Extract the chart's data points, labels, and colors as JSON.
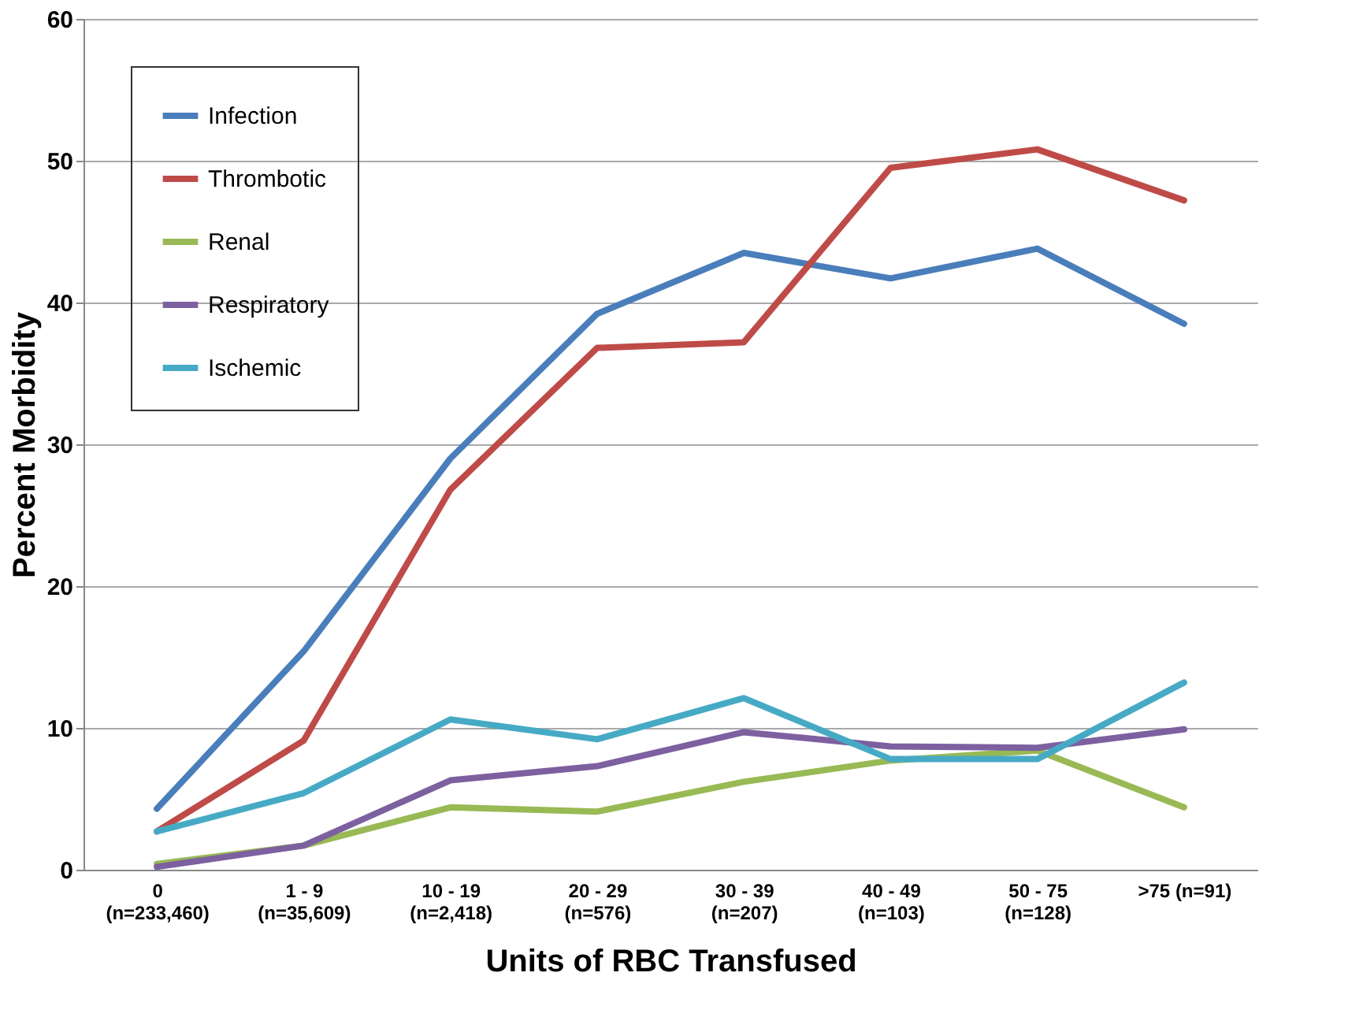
{
  "chart_data": {
    "type": "line",
    "xlabel": "Units of RBC Transfused",
    "ylabel": "Percent Morbidity",
    "categories": [
      "0\n(n=233,460)",
      "1 - 9\n(n=35,609)",
      "10 - 19\n(n=2,418)",
      "20 - 29\n(n=576)",
      "30 - 39\n(n=207)",
      "40 - 49\n(n=103)",
      "50 - 75\n(n=128)",
      ">75 (n=91)"
    ],
    "series": [
      {
        "name": "Infection",
        "color": "#4a7ebb",
        "values": [
          4.3,
          15.4,
          29.0,
          39.2,
          43.5,
          41.7,
          43.8,
          38.5
        ]
      },
      {
        "name": "Thrombotic",
        "color": "#be4b48",
        "values": [
          2.7,
          9.1,
          26.8,
          36.8,
          37.2,
          49.5,
          50.8,
          47.2
        ]
      },
      {
        "name": "Renal",
        "color": "#98b954",
        "values": [
          0.4,
          1.7,
          4.4,
          4.1,
          6.2,
          7.7,
          8.4,
          4.4
        ]
      },
      {
        "name": "Respiratory",
        "color": "#7d60a0",
        "values": [
          0.2,
          1.7,
          6.3,
          7.3,
          9.7,
          8.7,
          8.6,
          9.9
        ]
      },
      {
        "name": "Ischemic",
        "color": "#46aac5",
        "values": [
          2.7,
          5.4,
          10.6,
          9.2,
          12.1,
          7.8,
          7.8,
          13.2
        ]
      }
    ],
    "ylim": [
      0,
      60
    ],
    "yticks": [
      0,
      10,
      20,
      30,
      40,
      50,
      60
    ],
    "grid": "y",
    "legend": "top left",
    "marker": "none",
    "line_style": "solid"
  }
}
